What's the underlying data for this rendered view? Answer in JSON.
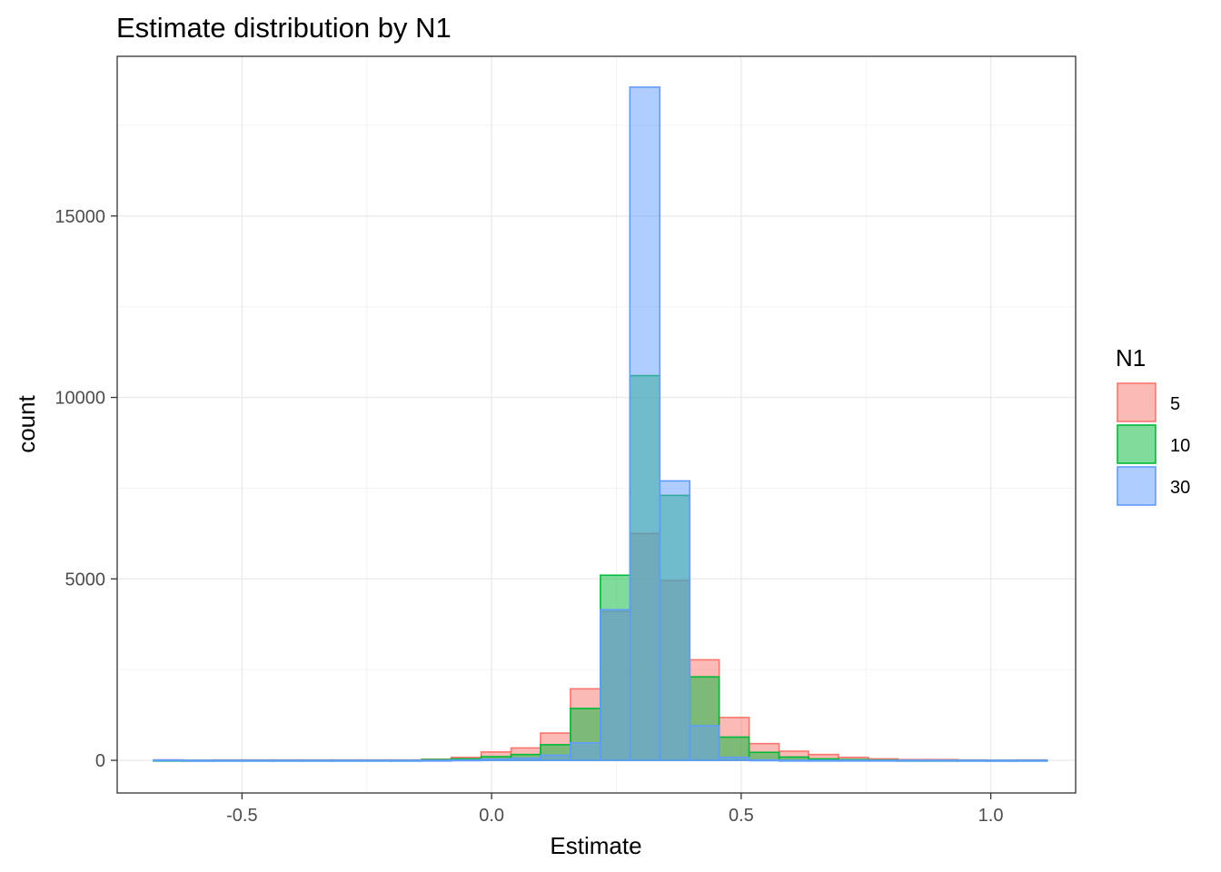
{
  "chart_data": {
    "type": "histogram",
    "title": "Estimate distribution by N1",
    "xlabel": "Estimate",
    "ylabel": "count",
    "xlim": [
      -0.75,
      1.17
    ],
    "ylim": [
      -900,
      19400
    ],
    "x_ticks": [
      -0.5,
      0.0,
      0.5,
      1.0
    ],
    "x_tick_labels": [
      "-0.5",
      "0.0",
      "0.5",
      "1.0"
    ],
    "y_ticks": [
      0,
      5000,
      10000,
      15000
    ],
    "y_tick_labels": [
      "0",
      "5000",
      "10000",
      "15000"
    ],
    "bin_edges": [
      -0.677,
      -0.618,
      -0.558,
      -0.498,
      -0.439,
      -0.379,
      -0.319,
      -0.26,
      -0.2,
      -0.14,
      -0.081,
      -0.021,
      0.039,
      0.098,
      0.158,
      0.218,
      0.277,
      0.337,
      0.397,
      0.456,
      0.516,
      0.576,
      0.635,
      0.695,
      0.755,
      0.814,
      0.874,
      0.934,
      0.993,
      1.053,
      1.113
    ],
    "legend_title": "N1",
    "legend_position": "right",
    "series": [
      {
        "name": "5",
        "color": "#F8766D",
        "values": [
          10,
          0,
          10,
          10,
          10,
          10,
          10,
          10,
          10,
          30,
          80,
          230,
          340,
          750,
          1970,
          4100,
          6250,
          4950,
          2770,
          1180,
          460,
          250,
          160,
          80,
          40,
          20,
          20,
          10,
          0,
          10
        ]
      },
      {
        "name": "10",
        "color": "#00BA38",
        "values": [
          0,
          0,
          0,
          0,
          0,
          0,
          0,
          0,
          0,
          20,
          40,
          100,
          160,
          430,
          1430,
          5100,
          10600,
          7300,
          2300,
          640,
          220,
          90,
          40,
          20,
          10,
          0,
          0,
          0,
          0,
          0
        ]
      },
      {
        "name": "30",
        "color": "#619CFF",
        "values": [
          10,
          0,
          0,
          0,
          0,
          0,
          0,
          0,
          0,
          0,
          10,
          30,
          60,
          140,
          480,
          4150,
          18550,
          7700,
          950,
          80,
          10,
          0,
          0,
          0,
          0,
          0,
          0,
          0,
          0,
          0
        ]
      }
    ]
  }
}
